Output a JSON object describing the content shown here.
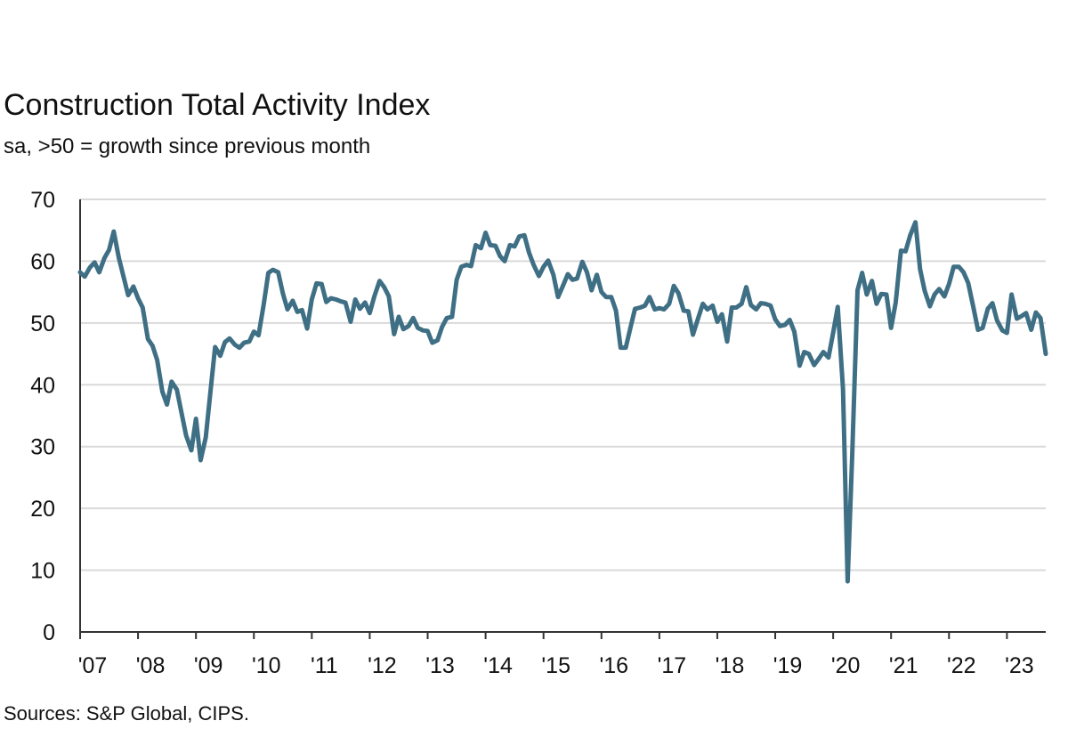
{
  "chart_data": {
    "type": "line",
    "title": "Construction Total Activity Index",
    "subtitle": "sa, >50 = growth since previous month",
    "source": "Sources: S&P Global, CIPS.",
    "xlabel": "",
    "ylabel": "",
    "ylim": [
      0,
      70
    ],
    "yticks": [
      0,
      10,
      20,
      30,
      40,
      50,
      60,
      70
    ],
    "xlim": [
      2007.0,
      2023.67
    ],
    "xticks": [
      {
        "value": 2007,
        "label": "'07"
      },
      {
        "value": 2008,
        "label": "'08"
      },
      {
        "value": 2009,
        "label": "'09"
      },
      {
        "value": 2010,
        "label": "'10"
      },
      {
        "value": 2011,
        "label": "'11"
      },
      {
        "value": 2012,
        "label": "'12"
      },
      {
        "value": 2013,
        "label": "'13"
      },
      {
        "value": 2014,
        "label": "'14"
      },
      {
        "value": 2015,
        "label": "'15"
      },
      {
        "value": 2016,
        "label": "'16"
      },
      {
        "value": 2017,
        "label": "'17"
      },
      {
        "value": 2018,
        "label": "'18"
      },
      {
        "value": 2019,
        "label": "'19"
      },
      {
        "value": 2020,
        "label": "'20"
      },
      {
        "value": 2021,
        "label": "'21"
      },
      {
        "value": 2022,
        "label": "'22"
      },
      {
        "value": 2023,
        "label": "'23"
      }
    ],
    "grid": true,
    "legend": "none",
    "line_color": "#3f6f85",
    "grid_color": "#d9d9d9",
    "series": [
      {
        "x": [
          2007.0,
          2007.08,
          2007.17,
          2007.25,
          2007.33,
          2007.42,
          2007.5,
          2007.58,
          2007.67,
          2007.75,
          2007.83,
          2007.92,
          2008.0,
          2008.08,
          2008.17,
          2008.25,
          2008.33,
          2008.42,
          2008.5,
          2008.58,
          2008.67,
          2008.75,
          2008.83,
          2008.92,
          2009.0,
          2009.08,
          2009.17,
          2009.25,
          2009.33,
          2009.42,
          2009.5,
          2009.58,
          2009.67,
          2009.75,
          2009.83,
          2009.92,
          2010.0,
          2010.08,
          2010.17,
          2010.25,
          2010.33,
          2010.42,
          2010.5,
          2010.58,
          2010.67,
          2010.75,
          2010.83,
          2010.92,
          2011.0,
          2011.08,
          2011.17,
          2011.25,
          2011.33,
          2011.42,
          2011.5,
          2011.58,
          2011.67,
          2011.75,
          2011.83,
          2011.92,
          2012.0,
          2012.08,
          2012.17,
          2012.25,
          2012.33,
          2012.42,
          2012.5,
          2012.58,
          2012.67,
          2012.75,
          2012.83,
          2012.92,
          2013.0,
          2013.08,
          2013.17,
          2013.25,
          2013.33,
          2013.42,
          2013.5,
          2013.58,
          2013.67,
          2013.75,
          2013.83,
          2013.92,
          2014.0,
          2014.08,
          2014.17,
          2014.25,
          2014.33,
          2014.42,
          2014.5,
          2014.58,
          2014.67,
          2014.75,
          2014.83,
          2014.92,
          2015.0,
          2015.08,
          2015.17,
          2015.25,
          2015.33,
          2015.42,
          2015.5,
          2015.58,
          2015.67,
          2015.75,
          2015.83,
          2015.92,
          2016.0,
          2016.08,
          2016.17,
          2016.25,
          2016.33,
          2016.42,
          2016.5,
          2016.58,
          2016.67,
          2016.75,
          2016.83,
          2016.92,
          2017.0,
          2017.08,
          2017.17,
          2017.25,
          2017.33,
          2017.42,
          2017.5,
          2017.58,
          2017.67,
          2017.75,
          2017.83,
          2017.92,
          2018.0,
          2018.08,
          2018.17,
          2018.25,
          2018.33,
          2018.42,
          2018.5,
          2018.58,
          2018.67,
          2018.75,
          2018.83,
          2018.92,
          2019.0,
          2019.08,
          2019.17,
          2019.25,
          2019.33,
          2019.42,
          2019.5,
          2019.58,
          2019.67,
          2019.75,
          2019.83,
          2019.92,
          2020.0,
          2020.08,
          2020.17,
          2020.25,
          2020.33,
          2020.42,
          2020.5,
          2020.58,
          2020.67,
          2020.75,
          2020.83,
          2020.92,
          2021.0,
          2021.08,
          2021.17,
          2021.25,
          2021.33,
          2021.42,
          2021.5,
          2021.58,
          2021.67,
          2021.75,
          2021.83,
          2021.92,
          2022.0,
          2022.08,
          2022.17,
          2022.25,
          2022.33,
          2022.42,
          2022.5,
          2022.58,
          2022.67,
          2022.75,
          2022.83,
          2022.92,
          2023.0,
          2023.08,
          2023.17,
          2023.25,
          2023.33,
          2023.42,
          2023.5,
          2023.58,
          2023.67
        ],
        "y": [
          58.2,
          57.5,
          59.0,
          59.8,
          58.2,
          60.5,
          61.8,
          64.8,
          60.5,
          57.5,
          54.5,
          55.9,
          54.0,
          52.5,
          47.4,
          46.3,
          44.0,
          38.9,
          36.8,
          40.5,
          39.2,
          35.5,
          31.8,
          29.4,
          34.5,
          27.8,
          31.5,
          38.8,
          46.1,
          44.7,
          46.9,
          47.5,
          46.5,
          46.0,
          46.8,
          47.0,
          48.6,
          48.0,
          53.0,
          58.1,
          58.6,
          58.2,
          54.8,
          52.2,
          53.6,
          51.8,
          52.1,
          49.1,
          53.8,
          56.4,
          56.3,
          53.4,
          54.0,
          53.8,
          53.5,
          53.3,
          50.2,
          53.8,
          52.3,
          53.3,
          51.6,
          54.3,
          56.8,
          55.8,
          54.3,
          48.2,
          51.0,
          49.0,
          49.5,
          50.8,
          49.2,
          48.8,
          48.7,
          46.8,
          47.2,
          49.4,
          50.8,
          51.0,
          57.0,
          59.1,
          59.4,
          59.2,
          62.6,
          62.1,
          64.6,
          62.6,
          62.5,
          60.8,
          60.0,
          62.6,
          62.4,
          64.0,
          64.2,
          61.4,
          59.4,
          57.6,
          59.1,
          60.1,
          57.8,
          54.2,
          55.9,
          57.9,
          57.0,
          57.2,
          59.9,
          58.2,
          55.3,
          57.8,
          55.0,
          54.2,
          54.2,
          52.0,
          46.0,
          46.0,
          49.2,
          52.3,
          52.5,
          52.8,
          54.2,
          52.2,
          52.4,
          52.2,
          53.1,
          56.0,
          54.8,
          52.0,
          51.9,
          48.1,
          50.8,
          53.1,
          52.2,
          52.8,
          50.2,
          51.4,
          47.0,
          52.5,
          52.5,
          53.1,
          55.8,
          52.9,
          52.2,
          53.2,
          53.1,
          52.8,
          50.6,
          49.5,
          49.7,
          50.5,
          48.6,
          43.1,
          45.3,
          45.0,
          43.2,
          44.2,
          45.3,
          44.4,
          48.4,
          52.6,
          39.3,
          8.2,
          28.9,
          55.3,
          58.1,
          54.6,
          56.8,
          53.1,
          54.7,
          54.6,
          49.2,
          53.3,
          61.7,
          61.6,
          64.2,
          66.3,
          58.7,
          55.2,
          52.7,
          54.6,
          55.5,
          54.3,
          56.3,
          59.1,
          59.1,
          58.2,
          56.5,
          52.6,
          48.9,
          49.2,
          52.3,
          53.2,
          50.4,
          48.8,
          48.4,
          54.6,
          50.7,
          51.1,
          51.6,
          48.9,
          51.7,
          50.8,
          45.0
        ]
      }
    ]
  }
}
